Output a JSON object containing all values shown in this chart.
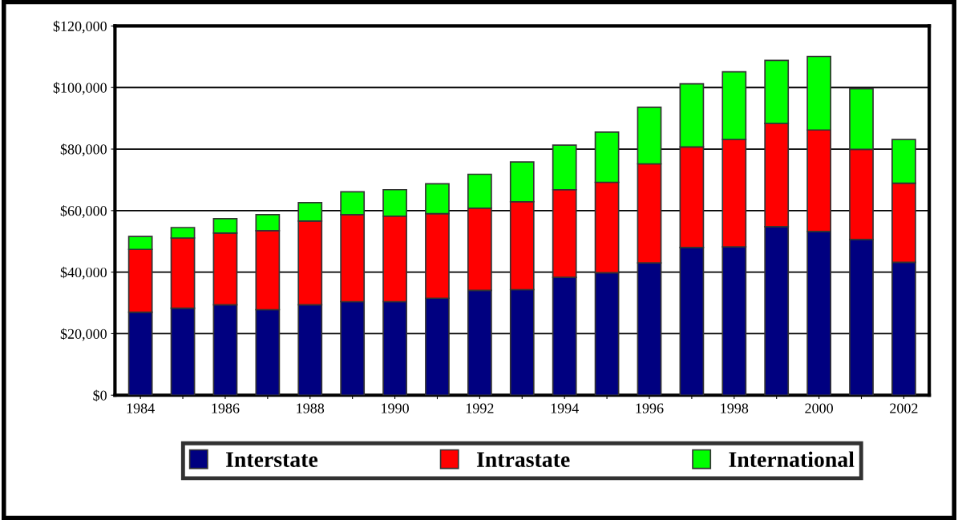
{
  "chart_data": {
    "type": "bar",
    "stacked": true,
    "categories": [
      "1984",
      null,
      "1986",
      null,
      "1988",
      null,
      "1990",
      null,
      "1992",
      null,
      "1994",
      null,
      "1996",
      null,
      "1998",
      null,
      "2000",
      null,
      "2002"
    ],
    "series": [
      {
        "name": "Interstate",
        "color": "#000080",
        "values": [
          27000,
          28300,
          29400,
          27800,
          29400,
          30400,
          30400,
          31500,
          34100,
          34300,
          38300,
          39800,
          43000,
          48000,
          48200,
          54800,
          53200,
          50600,
          43200
        ]
      },
      {
        "name": "Intrastate",
        "color": "#ff0000",
        "values": [
          20400,
          22800,
          23300,
          25700,
          27200,
          28300,
          27800,
          27500,
          26700,
          28600,
          28500,
          29400,
          32200,
          32700,
          34900,
          33500,
          33000,
          29300,
          25700
        ]
      },
      {
        "name": "International",
        "color": "#00ff00",
        "values": [
          4200,
          3400,
          4700,
          5200,
          6000,
          7400,
          8600,
          9700,
          11000,
          12900,
          14500,
          16300,
          18400,
          20500,
          22000,
          20500,
          23900,
          19700,
          14200
        ]
      }
    ],
    "ylim": [
      0,
      120000
    ],
    "yticks": [
      {
        "value": 0,
        "label": "$0"
      },
      {
        "value": 20000,
        "label": "$20,000"
      },
      {
        "value": 40000,
        "label": "$40,000"
      },
      {
        "value": 60000,
        "label": "$60,000"
      },
      {
        "value": 80000,
        "label": "$80,000"
      },
      {
        "value": 100000,
        "label": "$100,000"
      },
      {
        "value": 120000,
        "label": "$120,000"
      }
    ],
    "grid": "y",
    "legend": "bottom"
  }
}
